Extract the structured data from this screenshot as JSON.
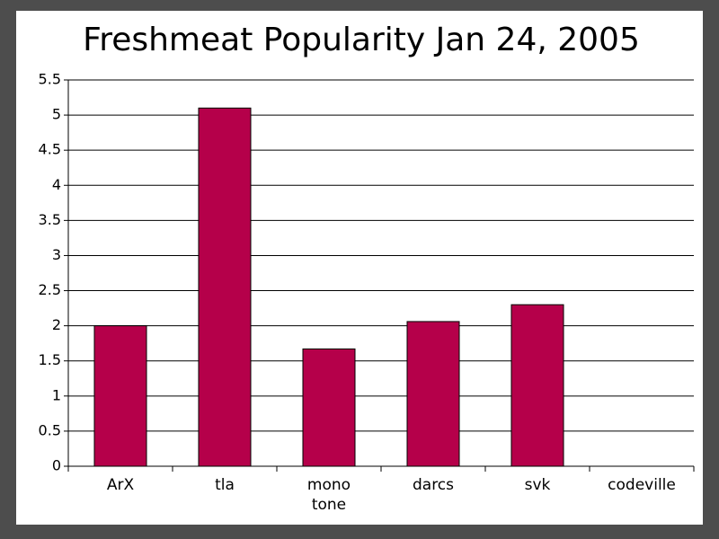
{
  "chart_data": {
    "type": "bar",
    "title": "Freshmeat Popularity Jan 24, 2005",
    "categories": [
      "ArX",
      "tla",
      "mono\ntone",
      "darcs",
      "svk",
      "codeville"
    ],
    "values": [
      2.0,
      5.1,
      1.67,
      2.06,
      2.3,
      null
    ],
    "color": "#b5004a",
    "ylim": [
      0,
      5.5
    ],
    "yticks": [
      0,
      0.5,
      1,
      1.5,
      2,
      2.5,
      3,
      3.5,
      4,
      4.5,
      5,
      5.5
    ],
    "grid": true
  }
}
